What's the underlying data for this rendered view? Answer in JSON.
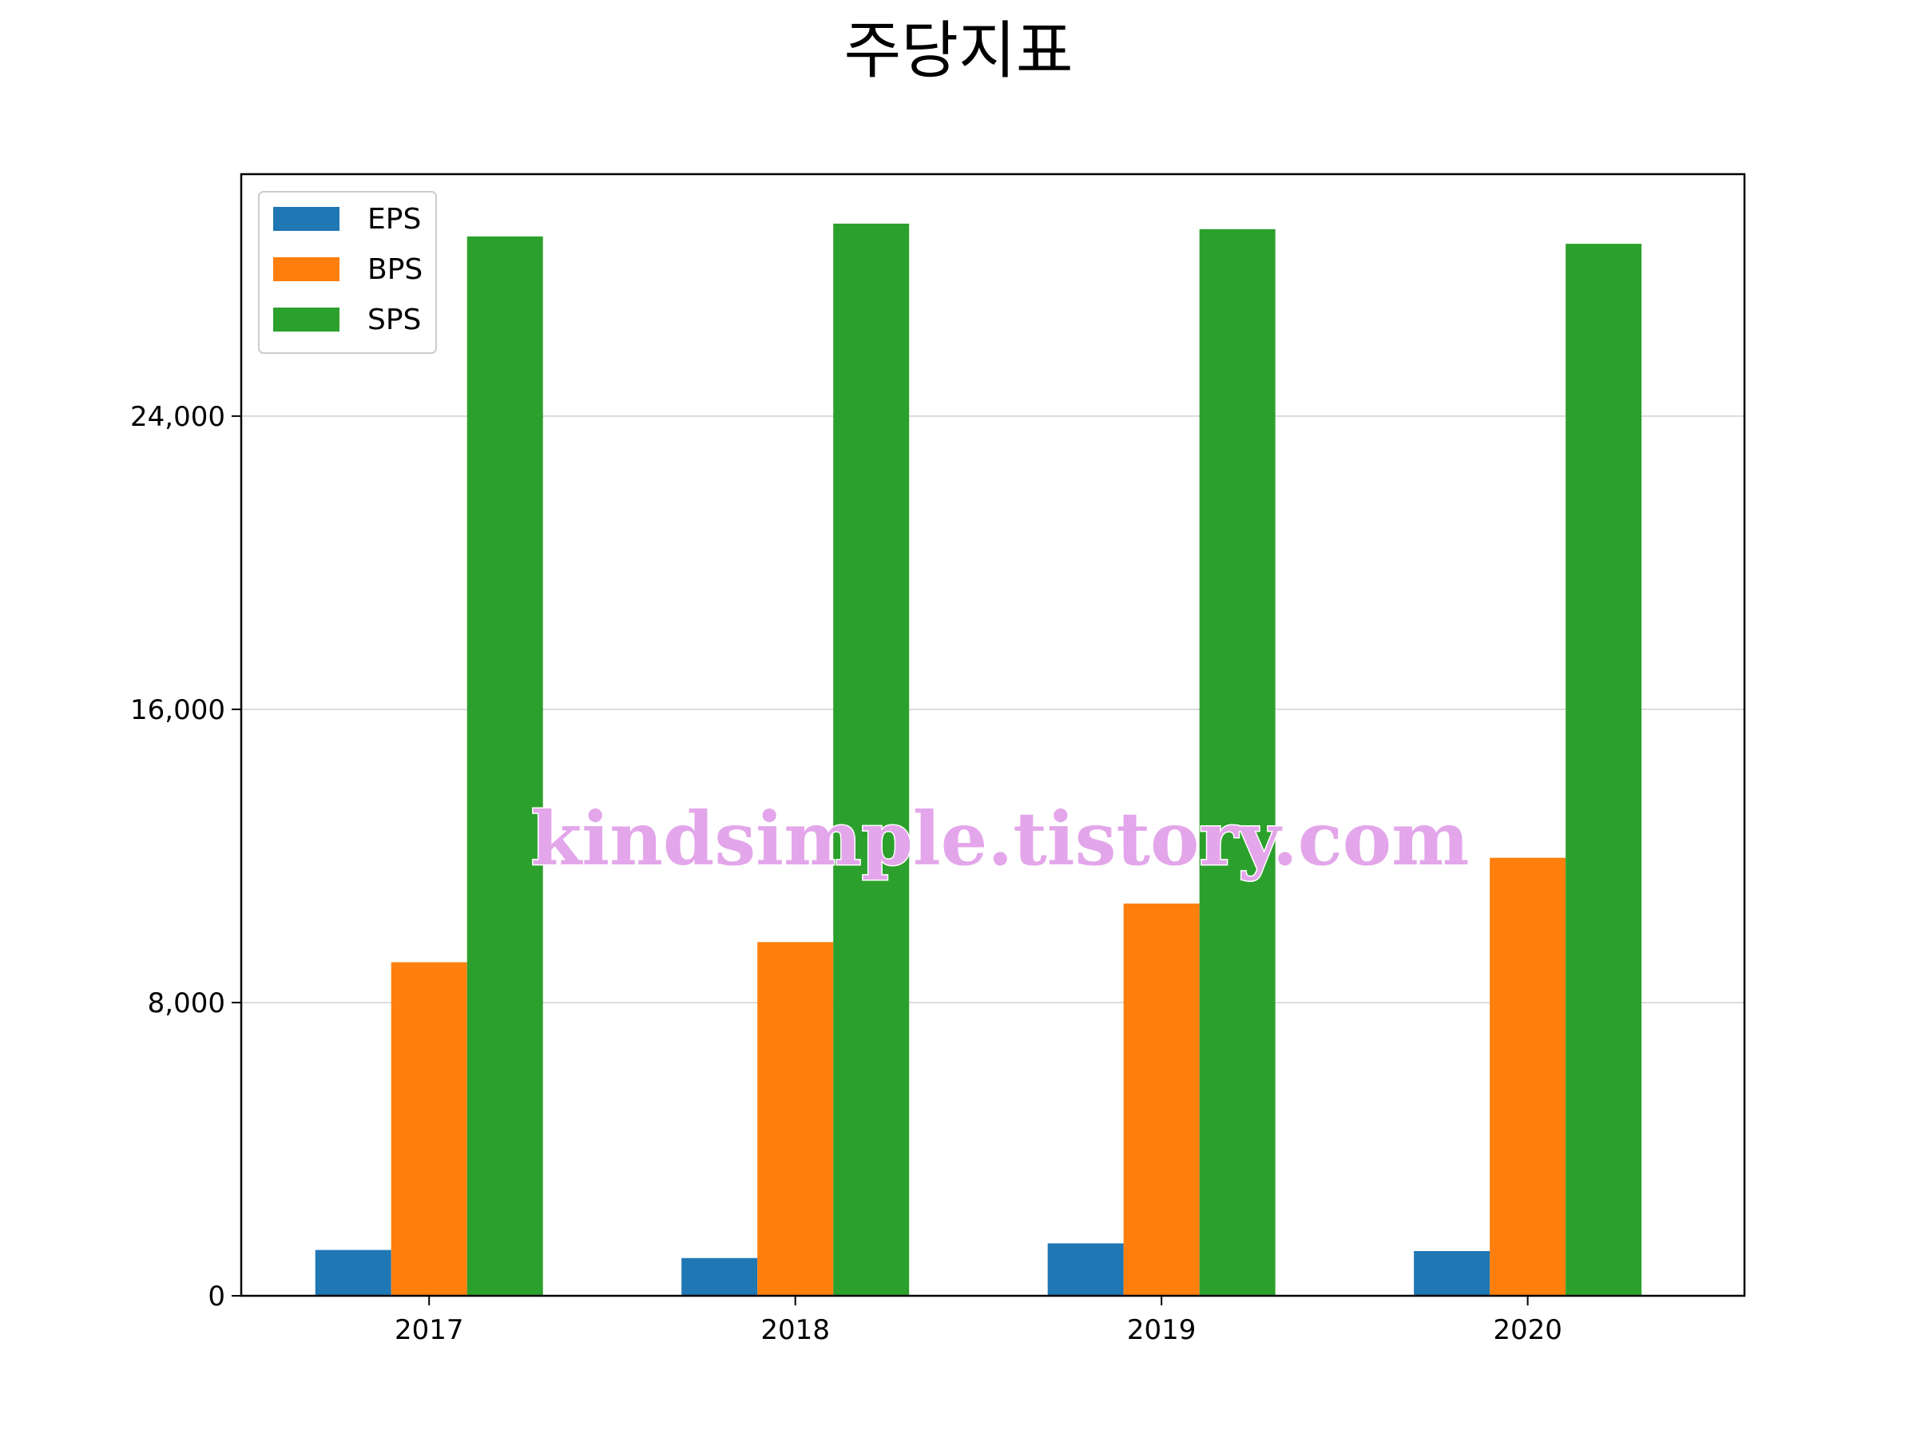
{
  "chart_data": {
    "type": "bar",
    "title": "주당지표",
    "categories": [
      "2017",
      "2018",
      "2019",
      "2020"
    ],
    "series": [
      {
        "name": "EPS",
        "values": [
          1250,
          1030,
          1430,
          1220
        ]
      },
      {
        "name": "BPS",
        "values": [
          9100,
          9650,
          10700,
          11950
        ]
      },
      {
        "name": "SPS",
        "values": [
          28900,
          29250,
          29100,
          28700
        ]
      }
    ],
    "ylim": [
      0,
      30600
    ],
    "yticks": [
      0,
      8000,
      16000,
      24000
    ],
    "ytick_labels": [
      "0",
      "8,000",
      "16,000",
      "24,000"
    ],
    "xlabel": "",
    "ylabel": "",
    "grid": "horizontal",
    "legend_position": "top-left",
    "colors": [
      "#1f77b4",
      "#ff7f0e",
      "#2ca02c"
    ],
    "watermark": "kindsimple.tistory.com",
    "watermark_color": "#e3a6ea"
  }
}
